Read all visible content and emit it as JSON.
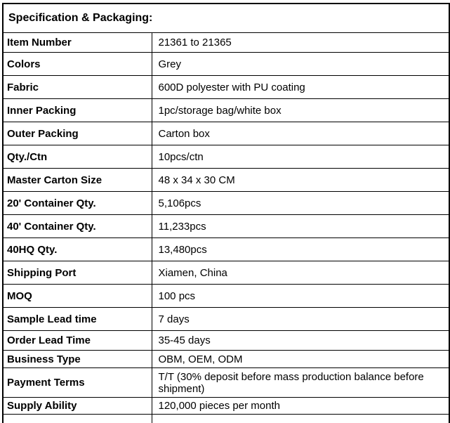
{
  "title": "Specification & Packaging:",
  "rows": [
    {
      "label": "Item Number",
      "value": "21361 to 21365"
    },
    {
      "label": "Colors",
      "value": "Grey"
    },
    {
      "label": "Fabric",
      "value": "600D polyester with PU coating"
    },
    {
      "label": "Inner Packing",
      "value": "1pc/storage bag/white box"
    },
    {
      "label": "Outer Packing",
      "value": "Carton box"
    },
    {
      "label": "Qty./Ctn",
      "value": "10pcs/ctn"
    },
    {
      "label": "Master Carton Size",
      "value": "48 x 34 x 30 CM"
    },
    {
      "label": "20' Container Qty.",
      "value": "5,106pcs"
    },
    {
      "label": "40' Container Qty.",
      "value": "11,233pcs"
    },
    {
      "label": "40HQ Qty.",
      "value": "13,480pcs"
    },
    {
      "label": "Shipping Port",
      "value": "Xiamen, China"
    },
    {
      "label": "MOQ",
      "value": "100 pcs"
    },
    {
      "label": "Sample Lead time",
      "value": "7 days"
    },
    {
      "label": "Order Lead Time",
      "value": "35-45 days"
    },
    {
      "label": "Business Type",
      "value": "OBM, OEM, ODM"
    },
    {
      "label": "Payment Terms",
      "value": "T/T (30% deposit before mass production balance before shipment)"
    },
    {
      "label": "Supply Ability",
      "value": "120,000 pieces per month"
    }
  ]
}
